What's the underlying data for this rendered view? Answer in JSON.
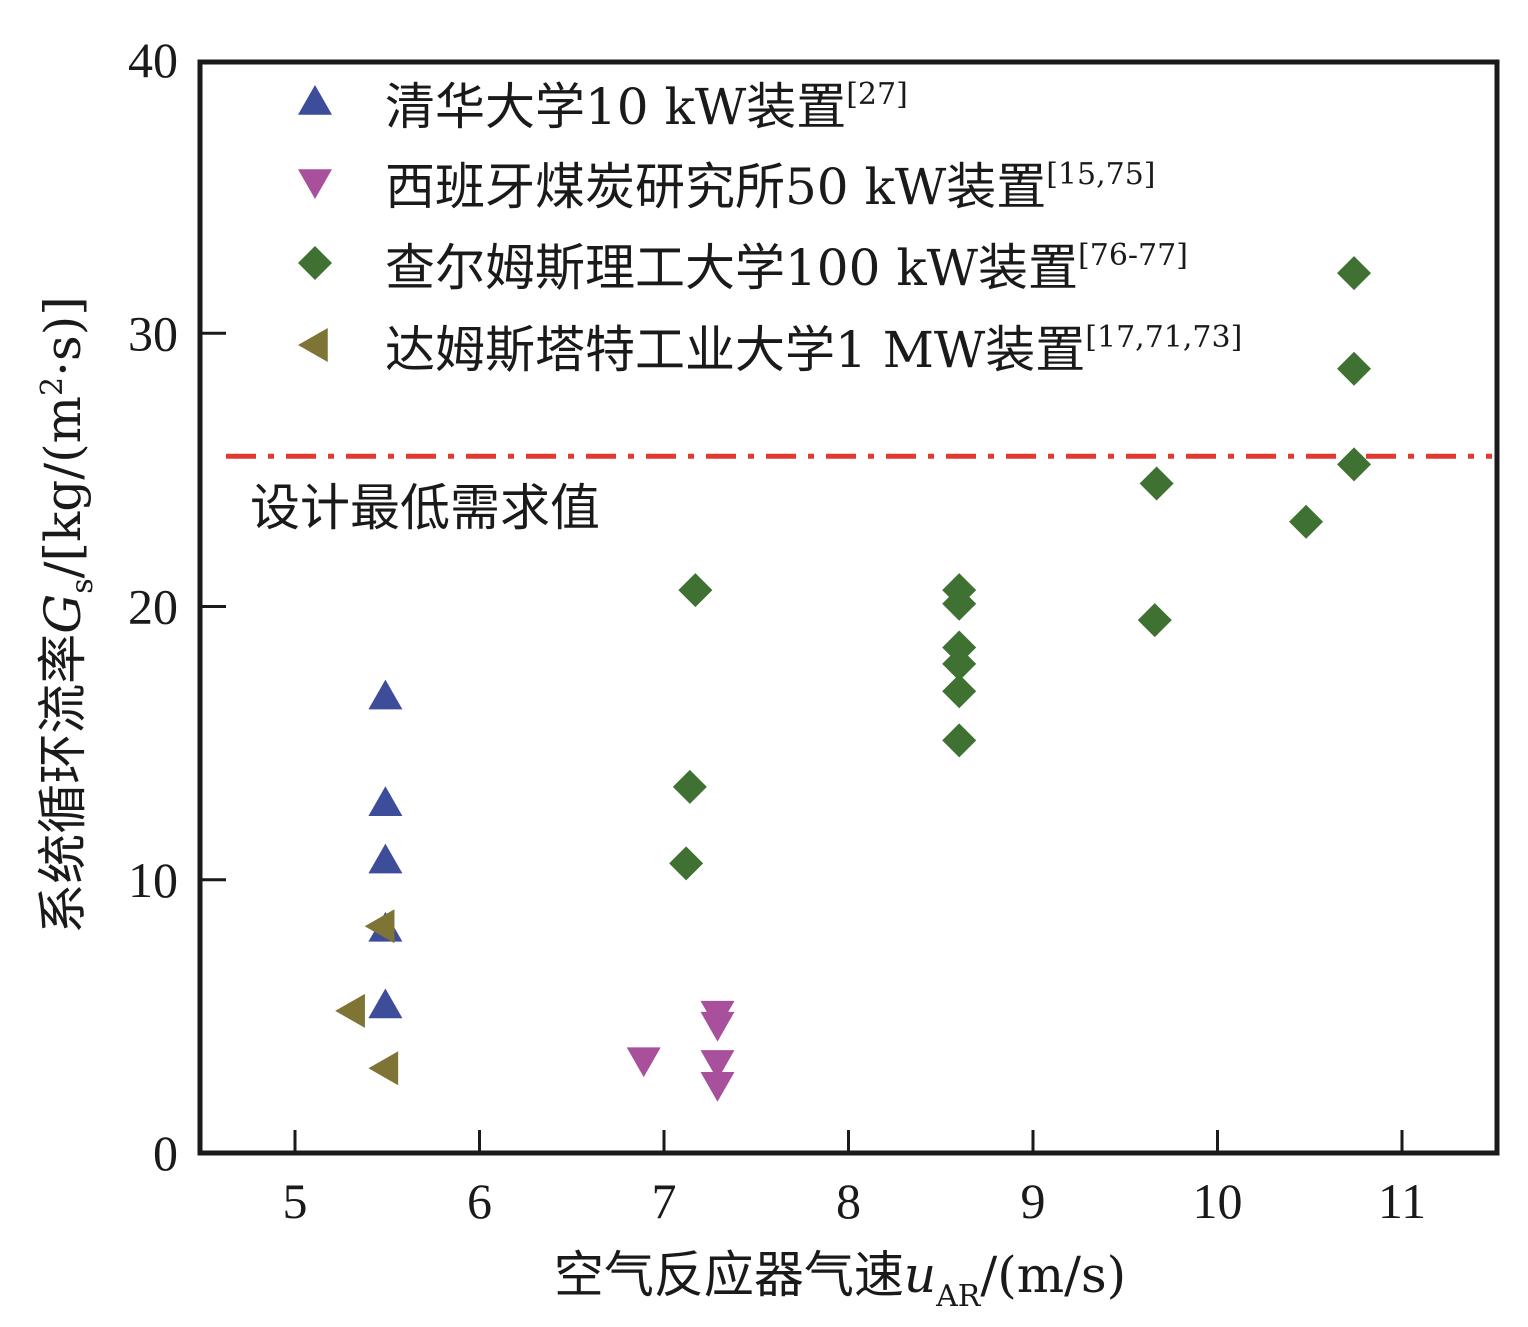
{
  "chart_data": {
    "type": "scatter",
    "title": "",
    "xlabel": {
      "main": "空气反应器气速",
      "symbol": "u",
      "subscript": "AR",
      "unit": "/(m/s)"
    },
    "ylabel": {
      "main": "系统循环流率",
      "symbol": "G",
      "subscript": "s",
      "unit_prefix": "/[kg/(m",
      "unit_sup": "2",
      "unit_suffix": "·s)]"
    },
    "xlim": [
      4.5,
      11.5
    ],
    "ylim": [
      0,
      40
    ],
    "xticks": [
      5,
      6,
      7,
      8,
      9,
      10,
      11
    ],
    "xtick_labels": [
      "5",
      "6",
      "7",
      "8",
      "9",
      "10",
      "11"
    ],
    "yticks": [
      0,
      10,
      20,
      30,
      40
    ],
    "ytick_labels": [
      "0",
      "10",
      "20",
      "30",
      "40"
    ],
    "grid": false,
    "legend_position": "top-left",
    "reference_line": {
      "value": 25.5,
      "label": "设计最低需求值",
      "color": "#e0392f",
      "style": "dash-dot"
    },
    "series": [
      {
        "name": "清华大学10 kW装置",
        "ref": "[27]",
        "marker": "triangle-up",
        "color": "#3d4d9a",
        "points": [
          [
            5.49,
            16.7
          ],
          [
            5.49,
            12.8
          ],
          [
            5.49,
            10.7
          ],
          [
            5.49,
            8.2
          ],
          [
            5.49,
            5.4
          ]
        ]
      },
      {
        "name": "西班牙煤炭研究所50 kW装置",
        "ref": "[15,75]",
        "marker": "triangle-down",
        "color": "#a8509c",
        "points": [
          [
            6.89,
            3.4
          ],
          [
            7.29,
            5.1
          ],
          [
            7.29,
            4.7
          ],
          [
            7.29,
            3.3
          ],
          [
            7.29,
            2.5
          ]
        ]
      },
      {
        "name": "查尔姆斯理工大学100 kW装置",
        "ref": "[76-77]",
        "marker": "diamond",
        "color": "#3e7132",
        "points": [
          [
            7.17,
            20.6
          ],
          [
            7.14,
            13.4
          ],
          [
            7.12,
            10.6
          ],
          [
            8.6,
            20.6
          ],
          [
            8.6,
            20.1
          ],
          [
            8.6,
            18.5
          ],
          [
            8.6,
            17.9
          ],
          [
            8.6,
            16.9
          ],
          [
            8.6,
            15.1
          ],
          [
            9.67,
            24.5
          ],
          [
            9.66,
            19.5
          ],
          [
            10.48,
            23.1
          ],
          [
            10.74,
            32.2
          ],
          [
            10.74,
            28.7
          ],
          [
            10.74,
            25.2
          ]
        ]
      },
      {
        "name": "达姆斯塔特工业大学1 MW装置",
        "ref": "[17,71,73]",
        "marker": "triangle-left",
        "color": "#7e7436",
        "points": [
          [
            5.47,
            8.3
          ],
          [
            5.31,
            5.2
          ],
          [
            5.49,
            3.1
          ]
        ]
      }
    ]
  }
}
